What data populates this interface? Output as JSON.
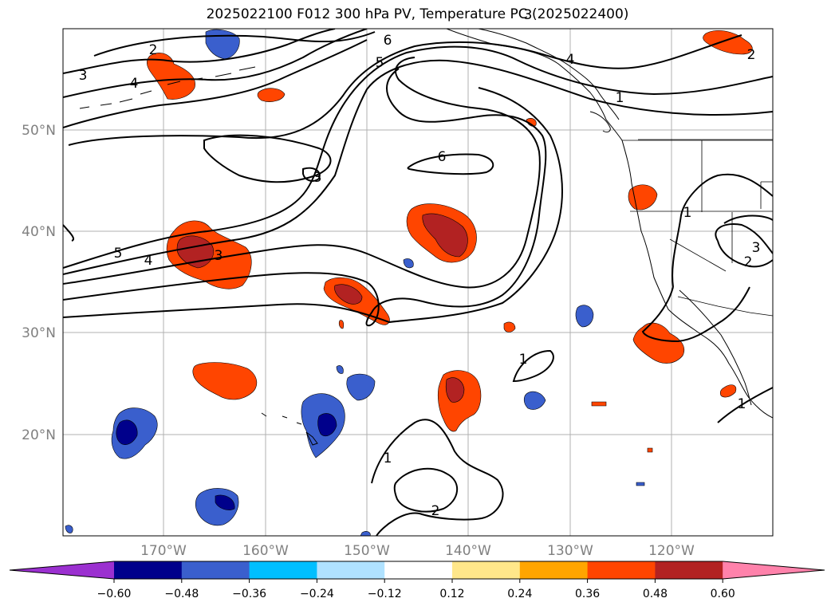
{
  "title": "2025022100 F012 300 hPa PV, Temperature PC (2025022400)",
  "lat_labels": [
    "50°N",
    "40°N",
    "30°N",
    "20°N"
  ],
  "lon_labels": [
    "170°W",
    "160°W",
    "150°W",
    "140°W",
    "130°W",
    "120°W"
  ],
  "contour_labels": [
    "2",
    "3",
    "4",
    "5",
    "6",
    "6",
    "4",
    "2",
    "1",
    "3",
    "5",
    "4",
    "3",
    "3",
    "1",
    "3",
    "2",
    "1",
    "1",
    "1",
    "2"
  ],
  "colorbar": {
    "ticks": [
      "−0.60",
      "−0.48",
      "−0.36",
      "−0.24",
      "−0.12",
      "0.12",
      "0.24",
      "0.36",
      "0.48",
      "0.60"
    ],
    "colors": [
      "#9b30d0",
      "#00008b",
      "#3a5fcd",
      "#00bfff",
      "#b0e2ff",
      "#ffffff",
      "#ffe78a",
      "#ffa500",
      "#ff4500",
      "#b22222",
      "#ff82ab"
    ]
  },
  "shade_colors": {
    "warm_edge": "#ffe78a",
    "warm_mid": "#ff4500",
    "warm_core": "#b22222",
    "cold_edge": "#b0e2ff",
    "cold_mid": "#3a5fcd",
    "cold_core": "#00008b"
  }
}
